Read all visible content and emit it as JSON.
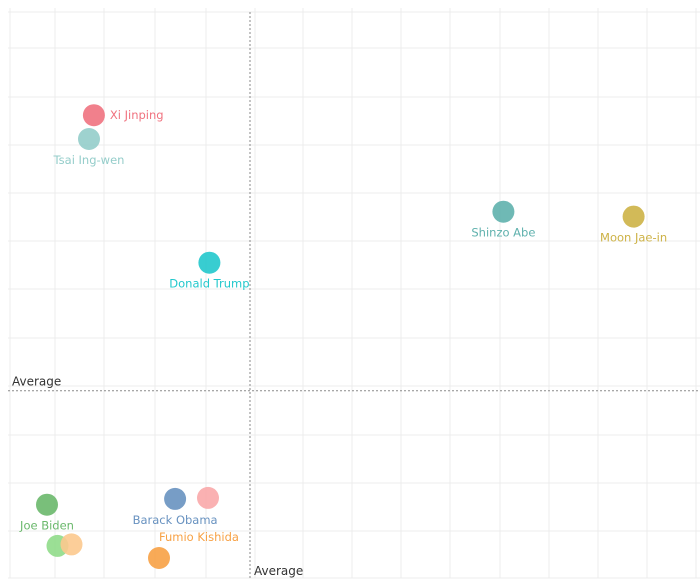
{
  "chart_data": {
    "type": "scatter",
    "title": "",
    "xlabel": "",
    "ylabel": "",
    "xlim": [
      0,
      10
    ],
    "ylim": [
      0,
      10
    ],
    "grid": true,
    "legend": "none",
    "average_x": 3.5,
    "average_y": 3.8,
    "average_x_label": "Average",
    "average_y_label": "Average",
    "points": [
      {
        "label": "Xi Jinping",
        "x": 1.27,
        "y": 9.48,
        "color": "#f0727f",
        "label_pos": "right"
      },
      {
        "label": "Tsai Ing-wen",
        "x": 1.2,
        "y": 8.99,
        "color": "#94cdca",
        "label_pos": "below"
      },
      {
        "label": "Shinzo Abe",
        "x": 7.12,
        "y": 7.49,
        "color": "#5fb1ad",
        "label_pos": "below"
      },
      {
        "label": "Moon Jae-in",
        "x": 8.98,
        "y": 7.39,
        "color": "#cdb246",
        "label_pos": "below"
      },
      {
        "label": "Donald Trump",
        "x": 2.92,
        "y": 6.44,
        "color": "#22c8cc",
        "label_pos": "below"
      },
      {
        "label": "Joe Biden",
        "x": 0.6,
        "y": 1.45,
        "color": "#6ab86b",
        "label_pos": "below"
      },
      {
        "label": "Barack Obama",
        "x": 2.43,
        "y": 1.57,
        "color": "#6892c0",
        "label_pos": "below"
      },
      {
        "label": "",
        "x": 2.9,
        "y": 1.59,
        "color": "#f9a8aa",
        "label_pos": "none"
      },
      {
        "label": "",
        "x": 0.75,
        "y": 0.6,
        "color": "#90dc8a",
        "label_pos": "none"
      },
      {
        "label": "",
        "x": 0.95,
        "y": 0.63,
        "color": "#fcc98e",
        "label_pos": "none"
      },
      {
        "label": "Fumio Kishida",
        "x": 2.2,
        "y": 0.35,
        "color": "#f7a145",
        "label_pos": "above-right"
      }
    ]
  }
}
